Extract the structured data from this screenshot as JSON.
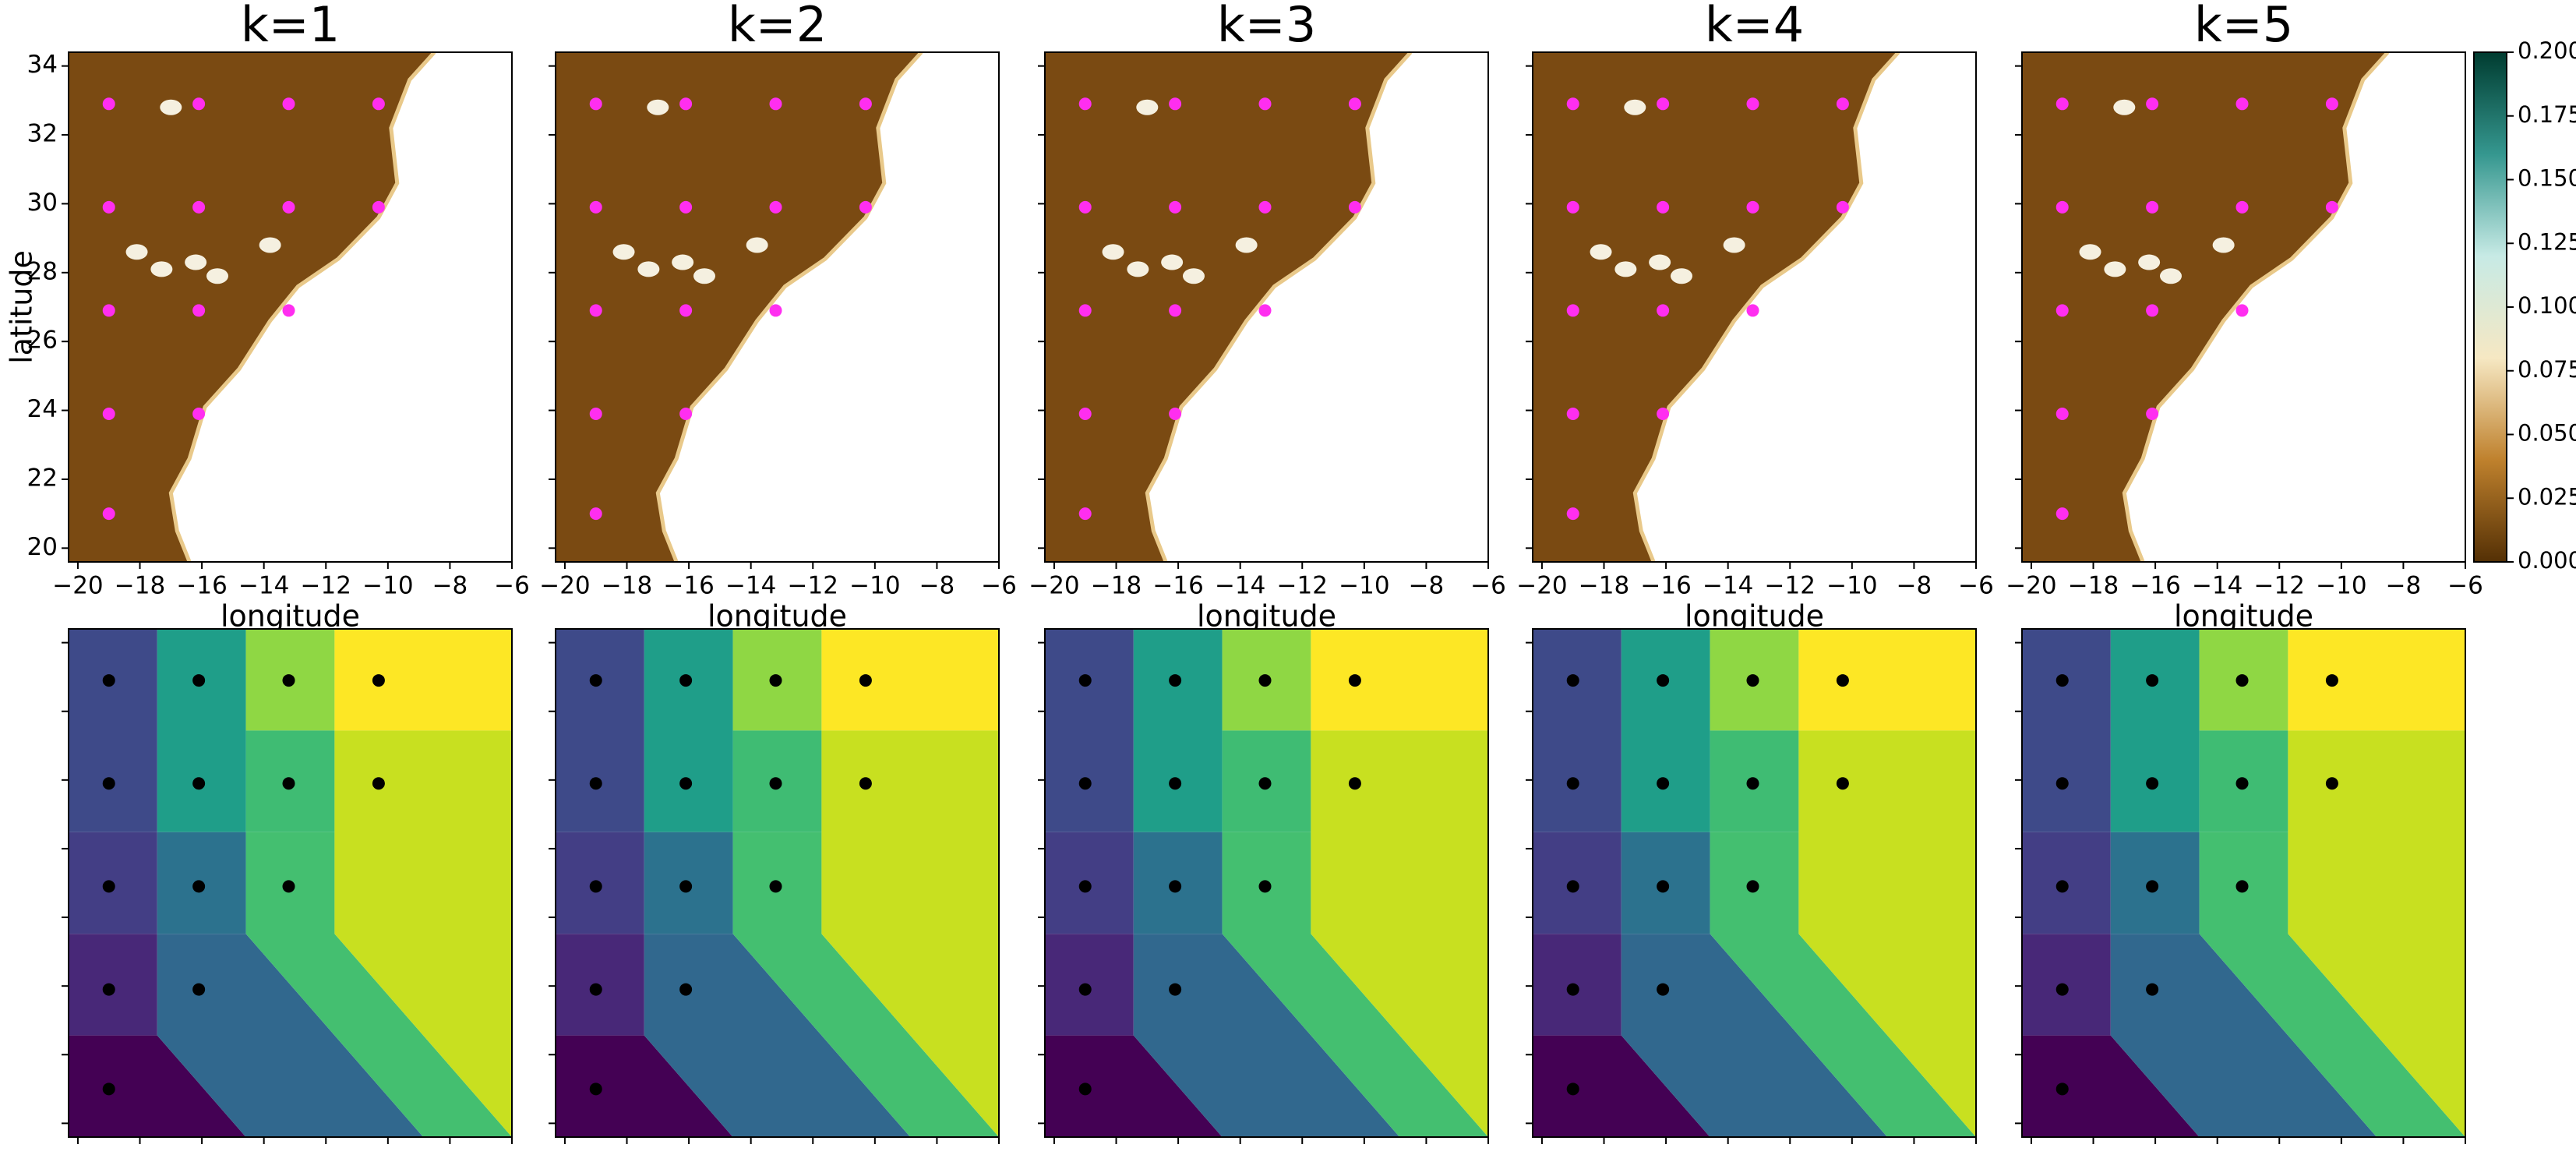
{
  "chart_data": [
    {
      "type": "scatter",
      "title": "k=1",
      "xlabel": "longitude",
      "ylabel": "latitude",
      "color": "#ff2ef0",
      "show_ytick_labels": true,
      "xlim": [
        -20.3,
        -6
      ],
      "ylim": [
        19.6,
        34.4
      ],
      "xticks": [
        {
          "value": -20,
          "label": "−20"
        },
        {
          "value": -18,
          "label": "−18"
        },
        {
          "value": -16,
          "label": "−16"
        },
        {
          "value": -14,
          "label": "−14"
        },
        {
          "value": -12,
          "label": "−12"
        },
        {
          "value": -10,
          "label": "−10"
        },
        {
          "value": -8,
          "label": "−8"
        },
        {
          "value": -6,
          "label": "−6"
        }
      ],
      "yticks": [
        20,
        22,
        24,
        26,
        28,
        30,
        32,
        34
      ],
      "x": [
        -19,
        -19,
        -19,
        -19,
        -19,
        -16.1,
        -16.1,
        -16.1,
        -16.1,
        -13.2,
        -13.2,
        -13.2,
        -10.3,
        -10.3
      ],
      "y": [
        32.9,
        29.9,
        26.9,
        23.9,
        21.0,
        32.9,
        29.9,
        26.9,
        23.9,
        32.9,
        29.9,
        26.9,
        32.9,
        29.9
      ]
    },
    {
      "type": "scatter",
      "title": "k=2",
      "xlabel": "longitude",
      "color": "#ff2ef0",
      "show_ytick_labels": false,
      "xlim": [
        -20.3,
        -6
      ],
      "ylim": [
        19.6,
        34.4
      ],
      "xticks": [
        {
          "value": -20,
          "label": "−20"
        },
        {
          "value": -18,
          "label": "−18"
        },
        {
          "value": -16,
          "label": "−16"
        },
        {
          "value": -14,
          "label": "−14"
        },
        {
          "value": -12,
          "label": "−12"
        },
        {
          "value": -10,
          "label": "−10"
        },
        {
          "value": -8,
          "label": "−8"
        },
        {
          "value": -6,
          "label": "−6"
        }
      ],
      "yticks": [
        20,
        22,
        24,
        26,
        28,
        30,
        32,
        34
      ],
      "x": [
        -19,
        -19,
        -19,
        -19,
        -19,
        -16.1,
        -16.1,
        -16.1,
        -16.1,
        -13.2,
        -13.2,
        -13.2,
        -10.3,
        -10.3
      ],
      "y": [
        32.9,
        29.9,
        26.9,
        23.9,
        21.0,
        32.9,
        29.9,
        26.9,
        23.9,
        32.9,
        29.9,
        26.9,
        32.9,
        29.9
      ]
    },
    {
      "type": "scatter",
      "title": "k=3",
      "xlabel": "longitude",
      "color": "#ff2ef0",
      "show_ytick_labels": false,
      "xlim": [
        -20.3,
        -6
      ],
      "ylim": [
        19.6,
        34.4
      ],
      "xticks": [
        {
          "value": -20,
          "label": "−20"
        },
        {
          "value": -18,
          "label": "−18"
        },
        {
          "value": -16,
          "label": "−16"
        },
        {
          "value": -14,
          "label": "−14"
        },
        {
          "value": -12,
          "label": "−12"
        },
        {
          "value": -10,
          "label": "−10"
        },
        {
          "value": -8,
          "label": "−8"
        },
        {
          "value": -6,
          "label": "−6"
        }
      ],
      "yticks": [
        20,
        22,
        24,
        26,
        28,
        30,
        32,
        34
      ],
      "x": [
        -19,
        -19,
        -19,
        -19,
        -19,
        -16.1,
        -16.1,
        -16.1,
        -16.1,
        -13.2,
        -13.2,
        -13.2,
        -10.3,
        -10.3
      ],
      "y": [
        32.9,
        29.9,
        26.9,
        23.9,
        21.0,
        32.9,
        29.9,
        26.9,
        23.9,
        32.9,
        29.9,
        26.9,
        32.9,
        29.9
      ]
    },
    {
      "type": "scatter",
      "title": "k=4",
      "xlabel": "longitude",
      "color": "#ff2ef0",
      "show_ytick_labels": false,
      "xlim": [
        -20.3,
        -6
      ],
      "ylim": [
        19.6,
        34.4
      ],
      "xticks": [
        {
          "value": -20,
          "label": "−20"
        },
        {
          "value": -18,
          "label": "−18"
        },
        {
          "value": -16,
          "label": "−16"
        },
        {
          "value": -14,
          "label": "−14"
        },
        {
          "value": -12,
          "label": "−12"
        },
        {
          "value": -10,
          "label": "−10"
        },
        {
          "value": -8,
          "label": "−8"
        },
        {
          "value": -6,
          "label": "−6"
        }
      ],
      "yticks": [
        20,
        22,
        24,
        26,
        28,
        30,
        32,
        34
      ],
      "x": [
        -19,
        -19,
        -19,
        -19,
        -19,
        -16.1,
        -16.1,
        -16.1,
        -16.1,
        -13.2,
        -13.2,
        -13.2,
        -10.3,
        -10.3
      ],
      "y": [
        32.9,
        29.9,
        26.9,
        23.9,
        21.0,
        32.9,
        29.9,
        26.9,
        23.9,
        32.9,
        29.9,
        26.9,
        32.9,
        29.9
      ]
    },
    {
      "type": "scatter",
      "title": "k=5",
      "xlabel": "longitude",
      "color": "#ff2ef0",
      "show_ytick_labels": false,
      "xlim": [
        -20.3,
        -6
      ],
      "ylim": [
        19.6,
        34.4
      ],
      "xticks": [
        {
          "value": -20,
          "label": "−20"
        },
        {
          "value": -18,
          "label": "−18"
        },
        {
          "value": -16,
          "label": "−16"
        },
        {
          "value": -14,
          "label": "−14"
        },
        {
          "value": -12,
          "label": "−12"
        },
        {
          "value": -10,
          "label": "−10"
        },
        {
          "value": -8,
          "label": "−8"
        },
        {
          "value": -6,
          "label": "−6"
        }
      ],
      "yticks": [
        20,
        22,
        24,
        26,
        28,
        30,
        32,
        34
      ],
      "x": [
        -19,
        -19,
        -19,
        -19,
        -19,
        -16.1,
        -16.1,
        -16.1,
        -16.1,
        -13.2,
        -13.2,
        -13.2,
        -10.3,
        -10.3
      ],
      "y": [
        32.9,
        29.9,
        26.9,
        23.9,
        21.0,
        32.9,
        29.9,
        26.9,
        23.9,
        32.9,
        29.9,
        26.9,
        32.9,
        29.9
      ],
      "colorbar": {
        "colors": [
          "#543005",
          "#bf812d",
          "#f6e8c3",
          "#c7eae5",
          "#35978f",
          "#003c30"
        ],
        "lim": [
          0,
          0.2
        ],
        "ticks": [
          {
            "value": 0,
            "label": "0.000"
          },
          {
            "value": 0.025,
            "label": "0.025"
          },
          {
            "value": 0.05,
            "label": "0.050"
          },
          {
            "value": 0.075,
            "label": "0.075"
          },
          {
            "value": 0.1,
            "label": "0.100"
          },
          {
            "value": 0.125,
            "label": "0.125"
          },
          {
            "value": 0.15,
            "label": "0.150"
          },
          {
            "value": 0.175,
            "label": "0.175"
          },
          {
            "value": 0.2,
            "label": "0.200"
          }
        ]
      }
    }
  ]
}
